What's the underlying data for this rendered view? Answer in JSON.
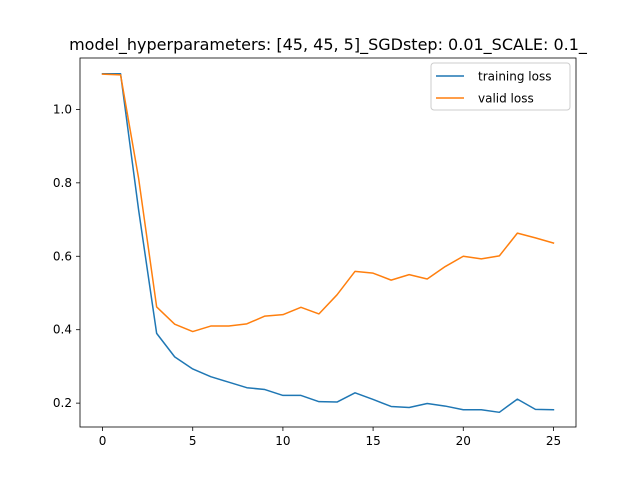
{
  "chart_data": {
    "type": "line",
    "title": "model_hyperparameters: [45, 45, 5]_SGDstep: 0.01_SCALE: 0.1_",
    "xlabel": "",
    "ylabel": "",
    "xlim": [
      -1.25,
      26.25
    ],
    "ylim": [
      0.135,
      1.14
    ],
    "xticks": [
      0,
      5,
      10,
      15,
      20,
      25
    ],
    "yticks": [
      0.2,
      0.4,
      0.6,
      0.8,
      1.0
    ],
    "xtick_labels": [
      "0",
      "5",
      "10",
      "15",
      "20",
      "25"
    ],
    "ytick_labels": [
      "0.2",
      "0.4",
      "0.6",
      "0.8",
      "1.0"
    ],
    "grid": false,
    "legend_position": "top-right",
    "x": [
      0,
      1,
      2,
      3,
      4,
      5,
      6,
      7,
      8,
      9,
      10,
      11,
      12,
      13,
      14,
      15,
      16,
      17,
      18,
      19,
      20,
      21,
      22,
      23,
      24,
      25
    ],
    "series": [
      {
        "name": "training loss",
        "color": "#1f77b4",
        "values": [
          1.097,
          1.097,
          0.726,
          0.39,
          0.326,
          0.293,
          0.272,
          0.257,
          0.242,
          0.237,
          0.221,
          0.221,
          0.204,
          0.203,
          0.228,
          0.21,
          0.191,
          0.188,
          0.199,
          0.192,
          0.182,
          0.182,
          0.175,
          0.211,
          0.183,
          0.182
        ]
      },
      {
        "name": "valid loss",
        "color": "#ff7f0e",
        "values": [
          1.096,
          1.094,
          0.812,
          0.462,
          0.415,
          0.395,
          0.41,
          0.41,
          0.416,
          0.437,
          0.441,
          0.461,
          0.443,
          0.495,
          0.559,
          0.554,
          0.535,
          0.55,
          0.538,
          0.572,
          0.6,
          0.593,
          0.601,
          0.663,
          0.65,
          0.636
        ]
      }
    ]
  }
}
